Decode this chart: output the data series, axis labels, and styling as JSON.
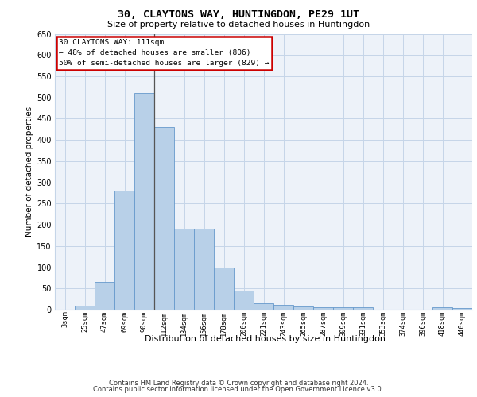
{
  "title": "30, CLAYTONS WAY, HUNTINGDON, PE29 1UT",
  "subtitle": "Size of property relative to detached houses in Huntingdon",
  "xlabel": "Distribution of detached houses by size in Huntingdon",
  "ylabel": "Number of detached properties",
  "bar_color": "#b8d0e8",
  "bar_edge_color": "#6699cc",
  "background_color": "#edf2f9",
  "grid_color": "#c5d5e8",
  "annotation_box_color": "#cc0000",
  "annotation_text": "30 CLAYTONS WAY: 111sqm\n← 48% of detached houses are smaller (806)\n50% of semi-detached houses are larger (829) →",
  "categories": [
    "3sqm",
    "25sqm",
    "47sqm",
    "69sqm",
    "90sqm",
    "112sqm",
    "134sqm",
    "156sqm",
    "178sqm",
    "200sqm",
    "221sqm",
    "243sqm",
    "265sqm",
    "287sqm",
    "309sqm",
    "331sqm",
    "353sqm",
    "374sqm",
    "396sqm",
    "418sqm",
    "440sqm"
  ],
  "values": [
    0,
    10,
    65,
    280,
    510,
    430,
    190,
    190,
    100,
    45,
    15,
    12,
    8,
    5,
    5,
    5,
    0,
    0,
    0,
    5,
    3
  ],
  "ylim": [
    0,
    650
  ],
  "yticks": [
    0,
    50,
    100,
    150,
    200,
    250,
    300,
    350,
    400,
    450,
    500,
    550,
    600,
    650
  ],
  "footer1": "Contains HM Land Registry data © Crown copyright and database right 2024.",
  "footer2": "Contains public sector information licensed under the Open Government Licence v3.0."
}
